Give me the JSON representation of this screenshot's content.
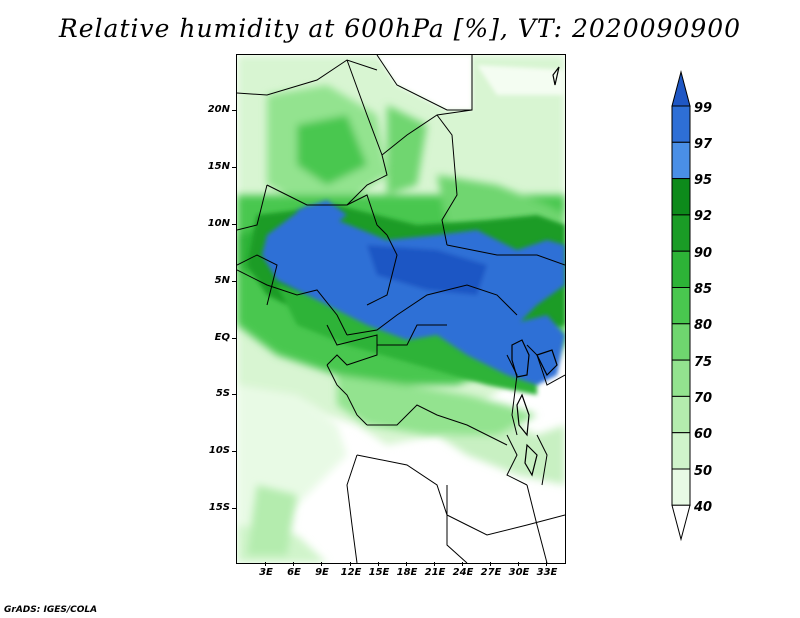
{
  "title": "Relative humidity at 600hPa [%], VT: 2020090900",
  "credit": "GrADS: IGES/COLA",
  "map": {
    "lat_ticks": [
      "20N",
      "15N",
      "10N",
      "5N",
      "EQ",
      "5S",
      "10S",
      "15S"
    ],
    "lon_ticks": [
      "3E",
      "6E",
      "9E",
      "12E",
      "15E",
      "18E",
      "21E",
      "24E",
      "27E",
      "30E",
      "33E"
    ]
  },
  "colorbar": {
    "labels": [
      "99",
      "97",
      "95",
      "92",
      "90",
      "85",
      "80",
      "75",
      "70",
      "60",
      "50",
      "40"
    ],
    "colors": {
      "over": "#1f57c4",
      "99": "#2e6fd6",
      "97": "#4a8fe6",
      "95": "#0d8a1b",
      "92": "#1a9c26",
      "90": "#2db337",
      "85": "#49c74f",
      "80": "#6fd66f",
      "75": "#93e38f",
      "70": "#b4ecae",
      "60": "#d0f4cb",
      "50": "#e8fae5",
      "under": "#ffffff"
    }
  }
}
